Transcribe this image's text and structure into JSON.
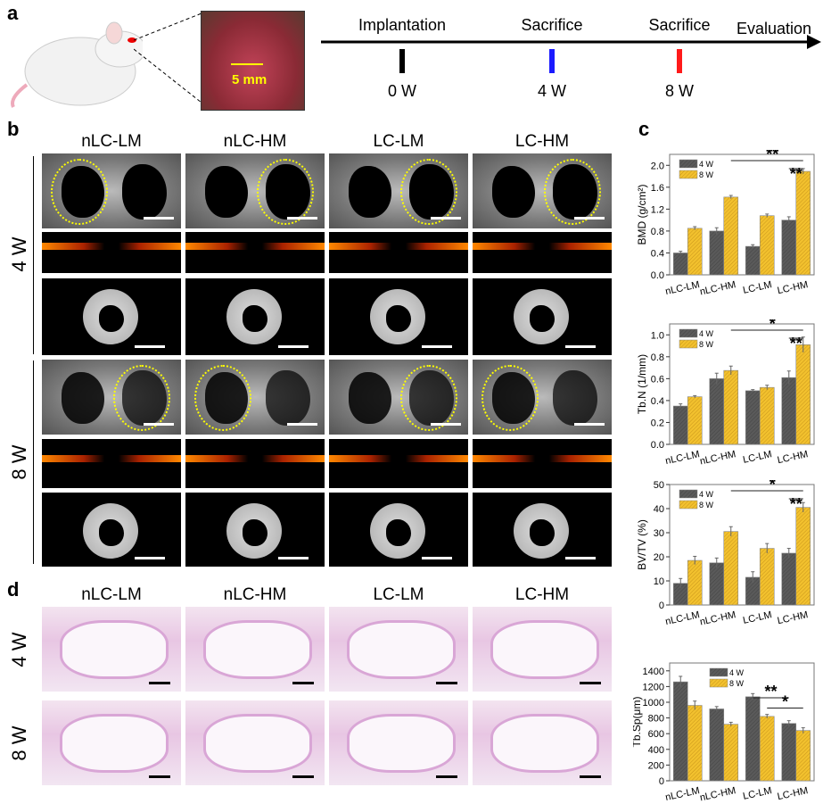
{
  "panels": {
    "a": "a",
    "b": "b",
    "c": "c",
    "d": "d"
  },
  "panel_a": {
    "scale_label": "5 mm",
    "timeline": {
      "events": [
        {
          "label": "Implantation",
          "week": "0 W",
          "color": "#000000"
        },
        {
          "label": "Sacrifice",
          "week": "4 W",
          "color": "#1a1aff"
        },
        {
          "label": "Sacrifice",
          "week": "8 W",
          "color": "#ff1a1a"
        }
      ],
      "end_label": "Evaluation"
    }
  },
  "groups": [
    "nLC-LM",
    "nLC-HM",
    "LC-LM",
    "LC-HM"
  ],
  "rows": [
    "4 W",
    "8 W"
  ],
  "colors": {
    "w4": "#5a5a5a",
    "w8": "#f2c12e",
    "ellipse": "#ffff00"
  },
  "chart_data": [
    {
      "type": "bar",
      "ylabel": "BMD (g/cm²)",
      "ylim": [
        0,
        2.2
      ],
      "ticks": [
        0.0,
        0.4,
        0.8,
        1.2,
        1.6,
        2.0
      ],
      "tick_decimals": 1,
      "categories": [
        "nLC-LM",
        "nLC-HM",
        "LC-LM",
        "LC-HM"
      ],
      "legend": "top-left",
      "series": [
        {
          "name": "4 W",
          "values": [
            0.4,
            0.8,
            0.52,
            1.0
          ],
          "errors": [
            0.03,
            0.06,
            0.03,
            0.06
          ]
        },
        {
          "name": "8 W",
          "values": [
            0.85,
            1.42,
            1.08,
            1.89
          ],
          "errors": [
            0.03,
            0.03,
            0.03,
            0.05
          ]
        }
      ],
      "significance": [
        {
          "from": [
            1,
            1
          ],
          "to": [
            3,
            1
          ],
          "label": "**"
        },
        {
          "from": [
            3,
            0
          ],
          "to": [
            3,
            1
          ],
          "label": "**"
        }
      ]
    },
    {
      "type": "bar",
      "ylabel": "Tb.N (1/mm)",
      "ylim": [
        0,
        1.1
      ],
      "ticks": [
        0.0,
        0.2,
        0.4,
        0.6,
        0.8,
        1.0
      ],
      "tick_decimals": 1,
      "categories": [
        "nLC-LM",
        "nLC-HM",
        "LC-LM",
        "LC-HM"
      ],
      "legend": "top-left",
      "series": [
        {
          "name": "4 W",
          "values": [
            0.35,
            0.6,
            0.49,
            0.61
          ],
          "errors": [
            0.02,
            0.05,
            0.01,
            0.06
          ]
        },
        {
          "name": "8 W",
          "values": [
            0.435,
            0.675,
            0.52,
            0.91
          ],
          "errors": [
            0.01,
            0.04,
            0.02,
            0.07
          ]
        }
      ],
      "significance": [
        {
          "from": [
            1,
            1
          ],
          "to": [
            3,
            1
          ],
          "label": "*"
        },
        {
          "from": [
            3,
            0
          ],
          "to": [
            3,
            1
          ],
          "label": "**"
        }
      ]
    },
    {
      "type": "bar",
      "ylabel": "BV/TV (%)",
      "ylim": [
        0,
        50
      ],
      "ticks": [
        0,
        10,
        20,
        30,
        40,
        50
      ],
      "tick_decimals": 0,
      "categories": [
        "nLC-LM",
        "nLC-HM",
        "LC-LM",
        "LC-HM"
      ],
      "legend": "top-left",
      "series": [
        {
          "name": "4 W",
          "values": [
            9,
            17.5,
            11.5,
            21.5
          ],
          "errors": [
            2,
            2,
            2.3,
            2
          ]
        },
        {
          "name": "8 W",
          "values": [
            18.5,
            30.5,
            23.5,
            40.5
          ],
          "errors": [
            1.7,
            2,
            2,
            2
          ]
        }
      ],
      "significance": [
        {
          "from": [
            1,
            1
          ],
          "to": [
            3,
            1
          ],
          "label": "*"
        },
        {
          "from": [
            3,
            0
          ],
          "to": [
            3,
            1
          ],
          "label": "**"
        }
      ]
    },
    {
      "type": "bar",
      "ylabel": "Tb.Sp(μm)",
      "ylim": [
        0,
        1500
      ],
      "ticks": [
        0,
        200,
        400,
        600,
        800,
        1000,
        1200,
        1400
      ],
      "tick_decimals": 0,
      "categories": [
        "nLC-LM",
        "nLC-HM",
        "LC-LM",
        "LC-HM"
      ],
      "legend": "top-center",
      "series": [
        {
          "name": "4 W",
          "values": [
            1260,
            915,
            1070,
            730
          ],
          "errors": [
            70,
            30,
            40,
            35
          ]
        },
        {
          "name": "8 W",
          "values": [
            960,
            720,
            820,
            640
          ],
          "errors": [
            55,
            25,
            25,
            35
          ]
        }
      ],
      "significance": [
        {
          "from": [
            2,
            0
          ],
          "to": [
            3,
            0
          ],
          "label": "**"
        },
        {
          "from": [
            2,
            1
          ],
          "to": [
            3,
            1
          ],
          "label": "*"
        }
      ]
    }
  ]
}
